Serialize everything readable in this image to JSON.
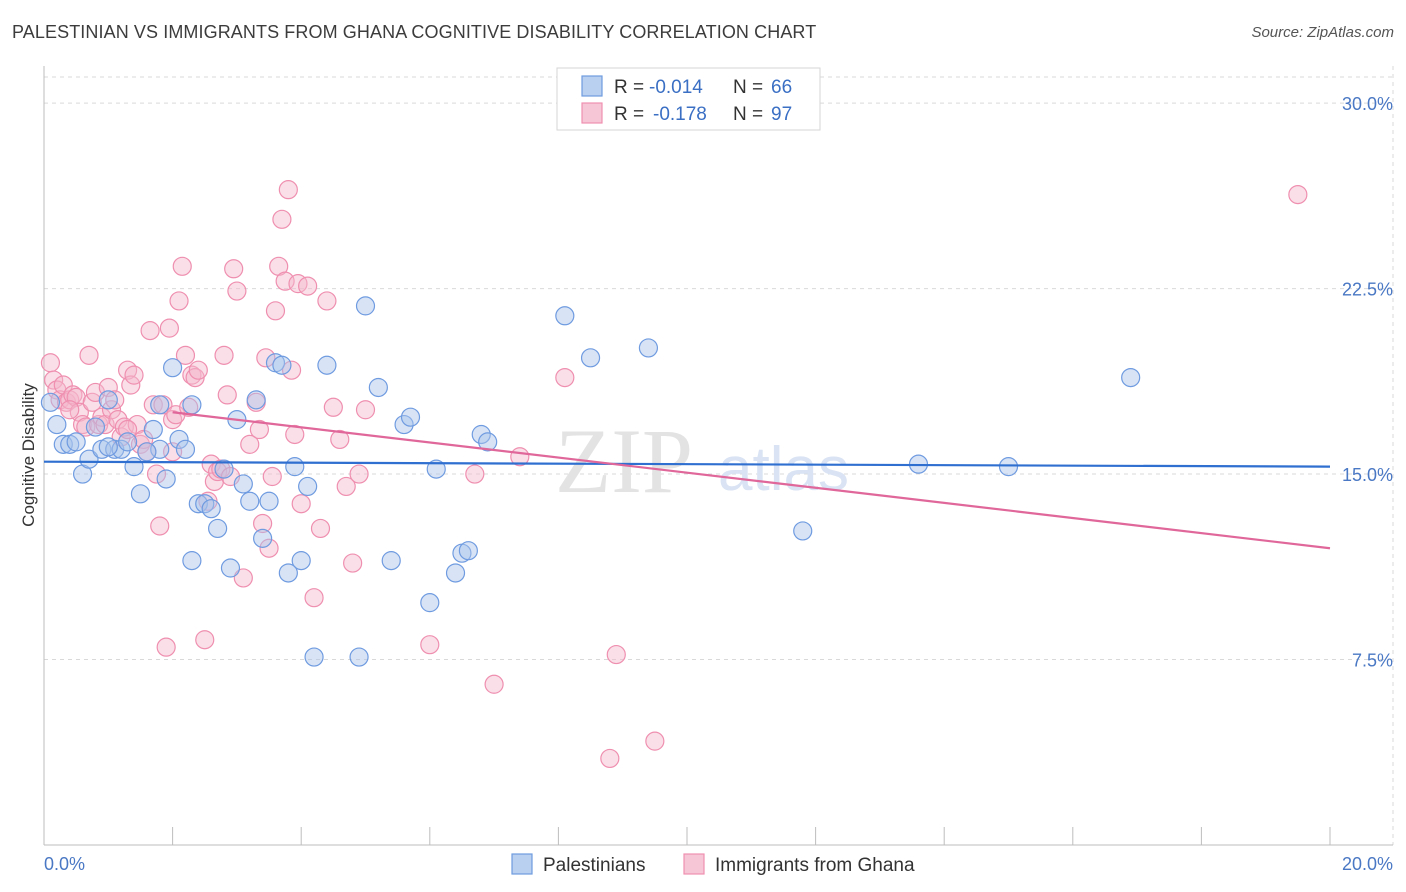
{
  "title": "PALESTINIAN VS IMMIGRANTS FROM GHANA COGNITIVE DISABILITY CORRELATION CHART",
  "source": "Source: ZipAtlas.com",
  "watermark": {
    "zip": "ZIP",
    "atlas": "atlas"
  },
  "colors": {
    "blue_fill": "#a9c4ec",
    "blue_stroke": "#6f9be0",
    "blue_line": "#2f6fd0",
    "pink_fill": "#f5b8cc",
    "pink_stroke": "#ef8fb0",
    "pink_line": "#e0679a",
    "grid": "#d9d9d9",
    "tick_text": "#4a78c4"
  },
  "legend_top": {
    "rows": [
      {
        "r_label": "R =",
        "r_value": "-0.014",
        "n_label": "N =",
        "n_value": "66"
      },
      {
        "r_label": "R =",
        "r_value": "-0.178",
        "n_label": "N =",
        "n_value": "97"
      }
    ]
  },
  "chart_data": {
    "type": "scatter",
    "title": "PALESTINIAN VS IMMIGRANTS FROM GHANA COGNITIVE DISABILITY CORRELATION CHART",
    "xlabel": "",
    "ylabel": "Cognitive Disability",
    "xlim": [
      0,
      20
    ],
    "ylim": [
      0,
      31.5
    ],
    "x_tick_labels": [
      "0.0%",
      "20.0%"
    ],
    "y_ticks": [
      7.5,
      15.0,
      22.5,
      30.0
    ],
    "y_tick_labels": [
      "7.5%",
      "15.0%",
      "22.5%",
      "30.0%"
    ],
    "grid": true,
    "legend_position": "top-center",
    "series": [
      {
        "name": "Palestinians",
        "r": -0.014,
        "n": 66,
        "trend": {
          "x": [
            0,
            20
          ],
          "y": [
            15.5,
            15.3
          ]
        },
        "points": [
          [
            0.1,
            17.9
          ],
          [
            0.2,
            17.0
          ],
          [
            0.3,
            16.2
          ],
          [
            0.4,
            16.2
          ],
          [
            0.6,
            15.0
          ],
          [
            0.7,
            15.6
          ],
          [
            0.8,
            16.9
          ],
          [
            0.9,
            16.0
          ],
          [
            1.0,
            18.0
          ],
          [
            1.1,
            16.0
          ],
          [
            1.2,
            16.0
          ],
          [
            1.3,
            16.3
          ],
          [
            1.4,
            15.3
          ],
          [
            1.5,
            14.2
          ],
          [
            1.7,
            16.8
          ],
          [
            1.8,
            17.8
          ],
          [
            1.9,
            14.8
          ],
          [
            2.0,
            19.3
          ],
          [
            2.1,
            16.4
          ],
          [
            2.2,
            16.0
          ],
          [
            2.3,
            11.5
          ],
          [
            2.4,
            13.8
          ],
          [
            2.5,
            13.8
          ],
          [
            2.6,
            13.6
          ],
          [
            2.7,
            12.8
          ],
          [
            2.8,
            15.2
          ],
          [
            2.9,
            11.2
          ],
          [
            3.0,
            17.2
          ],
          [
            3.1,
            14.6
          ],
          [
            3.2,
            13.9
          ],
          [
            3.3,
            18.0
          ],
          [
            3.4,
            12.4
          ],
          [
            3.5,
            13.9
          ],
          [
            3.6,
            19.5
          ],
          [
            3.7,
            19.4
          ],
          [
            3.8,
            11.0
          ],
          [
            3.9,
            15.3
          ],
          [
            4.0,
            11.5
          ],
          [
            4.1,
            14.5
          ],
          [
            4.2,
            7.6
          ],
          [
            4.4,
            19.4
          ],
          [
            4.9,
            7.6
          ],
          [
            5.2,
            18.5
          ],
          [
            5.0,
            21.8
          ],
          [
            5.4,
            11.5
          ],
          [
            5.6,
            17.0
          ],
          [
            5.7,
            17.3
          ],
          [
            6.0,
            9.8
          ],
          [
            6.1,
            15.2
          ],
          [
            6.4,
            11.0
          ],
          [
            6.5,
            11.8
          ],
          [
            6.6,
            11.9
          ],
          [
            6.8,
            16.6
          ],
          [
            6.9,
            16.3
          ],
          [
            8.1,
            21.4
          ],
          [
            8.5,
            19.7
          ],
          [
            9.4,
            20.1
          ],
          [
            11.8,
            12.7
          ],
          [
            13.6,
            15.4
          ],
          [
            15.0,
            15.3
          ],
          [
            16.9,
            18.9
          ],
          [
            0.5,
            16.3
          ],
          [
            1.8,
            16.0
          ],
          [
            2.3,
            17.8
          ],
          [
            1.0,
            16.1
          ],
          [
            1.6,
            15.9
          ]
        ]
      },
      {
        "name": "Immigrants from Ghana",
        "r": -0.178,
        "n": 97,
        "trend": {
          "x": [
            2,
            20
          ],
          "y": [
            17.5,
            12.0
          ]
        },
        "points": [
          [
            0.1,
            19.5
          ],
          [
            0.15,
            18.8
          ],
          [
            0.2,
            18.4
          ],
          [
            0.25,
            18.0
          ],
          [
            0.3,
            18.6
          ],
          [
            0.35,
            17.9
          ],
          [
            0.4,
            18.0
          ],
          [
            0.45,
            18.2
          ],
          [
            0.5,
            18.1
          ],
          [
            0.55,
            17.5
          ],
          [
            0.6,
            17.0
          ],
          [
            0.65,
            16.9
          ],
          [
            0.7,
            19.8
          ],
          [
            0.75,
            17.9
          ],
          [
            0.8,
            18.3
          ],
          [
            0.85,
            17.0
          ],
          [
            0.9,
            17.3
          ],
          [
            0.95,
            17.0
          ],
          [
            1.0,
            18.5
          ],
          [
            1.05,
            17.6
          ],
          [
            1.1,
            18.0
          ],
          [
            1.15,
            17.2
          ],
          [
            1.2,
            16.5
          ],
          [
            1.25,
            16.9
          ],
          [
            1.3,
            19.2
          ],
          [
            1.35,
            18.6
          ],
          [
            1.4,
            19.0
          ],
          [
            1.45,
            17.0
          ],
          [
            1.5,
            16.2
          ],
          [
            1.55,
            16.4
          ],
          [
            1.6,
            15.9
          ],
          [
            1.65,
            20.8
          ],
          [
            1.7,
            17.8
          ],
          [
            1.75,
            15.0
          ],
          [
            1.8,
            12.9
          ],
          [
            1.85,
            17.8
          ],
          [
            1.9,
            8.0
          ],
          [
            1.95,
            20.9
          ],
          [
            2.0,
            17.2
          ],
          [
            2.05,
            17.4
          ],
          [
            2.1,
            22.0
          ],
          [
            2.15,
            23.4
          ],
          [
            2.2,
            19.8
          ],
          [
            2.25,
            17.7
          ],
          [
            2.3,
            19.0
          ],
          [
            2.35,
            18.9
          ],
          [
            2.4,
            19.2
          ],
          [
            2.5,
            8.3
          ],
          [
            2.55,
            13.9
          ],
          [
            2.6,
            15.4
          ],
          [
            2.65,
            14.7
          ],
          [
            2.7,
            15.1
          ],
          [
            2.75,
            15.2
          ],
          [
            2.8,
            19.8
          ],
          [
            2.85,
            18.2
          ],
          [
            2.9,
            14.9
          ],
          [
            2.95,
            23.3
          ],
          [
            3.0,
            22.4
          ],
          [
            3.1,
            10.8
          ],
          [
            3.2,
            16.2
          ],
          [
            3.3,
            17.9
          ],
          [
            3.35,
            16.8
          ],
          [
            3.4,
            13.0
          ],
          [
            3.45,
            19.7
          ],
          [
            3.5,
            12.0
          ],
          [
            3.55,
            14.9
          ],
          [
            3.6,
            21.6
          ],
          [
            3.65,
            23.4
          ],
          [
            3.7,
            25.3
          ],
          [
            3.75,
            22.8
          ],
          [
            3.8,
            26.5
          ],
          [
            3.85,
            19.2
          ],
          [
            3.9,
            16.6
          ],
          [
            3.95,
            22.7
          ],
          [
            4.0,
            13.8
          ],
          [
            4.1,
            22.6
          ],
          [
            4.2,
            10.0
          ],
          [
            4.3,
            12.8
          ],
          [
            4.4,
            22.0
          ],
          [
            4.5,
            17.7
          ],
          [
            4.6,
            16.4
          ],
          [
            4.7,
            14.5
          ],
          [
            4.8,
            11.4
          ],
          [
            4.9,
            15.0
          ],
          [
            5.0,
            17.6
          ],
          [
            6.0,
            8.1
          ],
          [
            6.7,
            15.0
          ],
          [
            7.0,
            6.5
          ],
          [
            7.4,
            15.7
          ],
          [
            8.1,
            18.9
          ],
          [
            8.9,
            7.7
          ],
          [
            8.8,
            3.5
          ],
          [
            9.5,
            4.2
          ],
          [
            19.5,
            26.3
          ],
          [
            1.3,
            16.8
          ],
          [
            2.0,
            15.9
          ],
          [
            0.4,
            17.6
          ]
        ]
      }
    ]
  },
  "bottom_legend": [
    {
      "label": "Palestinians"
    },
    {
      "label": "Immigrants from Ghana"
    }
  ]
}
